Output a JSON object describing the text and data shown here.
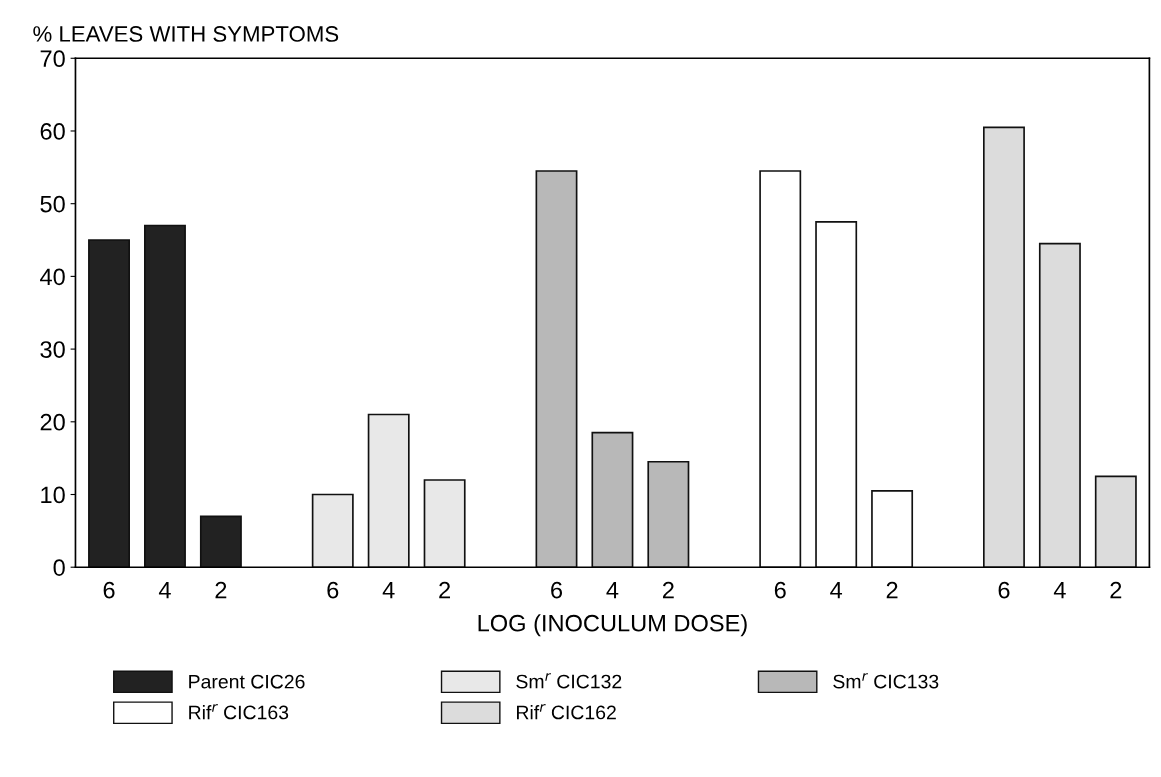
{
  "chart_data": {
    "type": "bar",
    "title": "% LEAVES WITH SYMPTOMS",
    "xlabel": "LOG (INOCULUM DOSE)",
    "categories": [
      "6",
      "4",
      "2",
      null,
      "6",
      "4",
      "2",
      null,
      "6",
      "4",
      "2",
      null,
      "6",
      "4",
      "2",
      null,
      "6",
      "4",
      "2"
    ],
    "series": [
      {
        "name": "Parent CIC26",
        "color": "#222222",
        "values": [
          45,
          47,
          7,
          null,
          null,
          null,
          null,
          null,
          null,
          null,
          null,
          null,
          null,
          null,
          null,
          null,
          null,
          null,
          null
        ]
      },
      {
        "name": "Sm$^{r}$ CIC132",
        "color": "#e8e8e8",
        "values": [
          null,
          null,
          null,
          null,
          10,
          21,
          12,
          null,
          null,
          null,
          null,
          null,
          null,
          null,
          null,
          null,
          null,
          null,
          null
        ]
      },
      {
        "name": "Sm$^{r}$ CIC133",
        "color": "#b8b8b8",
        "values": [
          null,
          null,
          null,
          null,
          null,
          null,
          null,
          null,
          54.5,
          18.5,
          14.5,
          null,
          null,
          null,
          null,
          null,
          null,
          null,
          null
        ]
      },
      {
        "name": "Rif$^{r}$ CIC163",
        "color": "#ffffff",
        "values": [
          null,
          null,
          null,
          null,
          null,
          null,
          null,
          null,
          null,
          null,
          null,
          null,
          54.5,
          47.5,
          10.5,
          null,
          null,
          null,
          null
        ]
      },
      {
        "name": "Rif$^{r}$ CIC162",
        "color": "#dcdcdc",
        "values": [
          null,
          null,
          null,
          null,
          null,
          null,
          null,
          null,
          null,
          null,
          null,
          null,
          null,
          null,
          null,
          null,
          60.5,
          44.5,
          12.5
        ]
      }
    ],
    "ylim": [
      0,
      70
    ],
    "yticks": [
      0,
      10,
      20,
      30,
      40,
      50,
      60,
      70
    ],
    "legend": "bottom",
    "grid": false
  }
}
